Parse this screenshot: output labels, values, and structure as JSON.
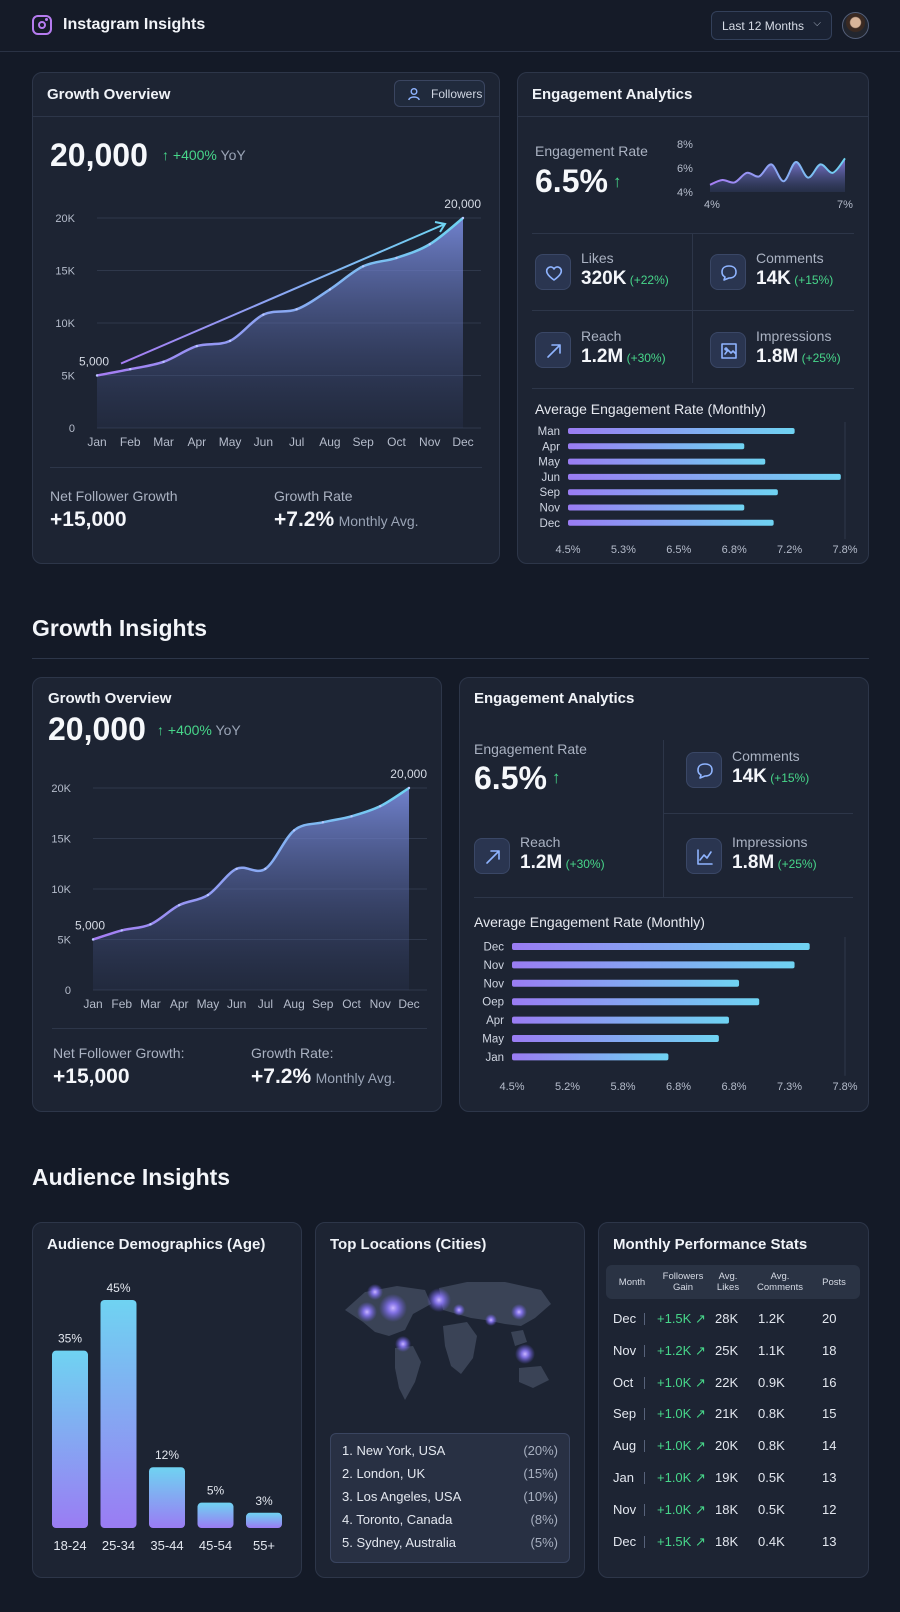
{
  "app": {
    "title": "Instagram Insights",
    "range": "Last 12 Months"
  },
  "growth1": {
    "title": "Growth Overview",
    "button": "Followers",
    "total": "20,000",
    "yoy_value": "+400%",
    "yoy_label": "YoY",
    "start_label": "5,000",
    "end_label": "20,000",
    "net_label": "Net Follower Growth",
    "net_value": "+15,000",
    "rate_label": "Growth Rate",
    "rate_value": "+7.2%",
    "rate_suffix": "Monthly Avg."
  },
  "engage1": {
    "title": "Engagement Analytics",
    "rate_label": "Engagement Rate",
    "rate_value": "6.5%",
    "spark_yticks": [
      "8%",
      "6%",
      "4%"
    ],
    "spark_xticks": [
      "4%",
      "7%"
    ],
    "stats": [
      {
        "label": "Likes",
        "value": "320K",
        "change": "(+22%)",
        "icon": "heart-icon"
      },
      {
        "label": "Comments",
        "value": "14K",
        "change": "(+15%)",
        "icon": "comment-icon"
      },
      {
        "label": "Reach",
        "value": "1.2M",
        "change": "(+30%)",
        "icon": "arrow-up-right-icon"
      },
      {
        "label": "Impressions",
        "value": "1.8M",
        "change": "(+25%)",
        "icon": "image-icon"
      }
    ],
    "bar_title": "Average Engagement Rate (Monthly)"
  },
  "section_growth": "Growth Insights",
  "growth2": {
    "title": "Growth Overview",
    "total": "20,000",
    "yoy_value": "+400%",
    "yoy_label": "YoY",
    "start_label": "5,000",
    "end_label": "20,000",
    "net_label": "Net Follower Growth:",
    "net_value": "+15,000",
    "rate_label": "Growth Rate:",
    "rate_value": "+7.2%",
    "rate_suffix": "Monthly Avg."
  },
  "engage2": {
    "title": "Engagement Analytics",
    "rate_label": "Engagement Rate",
    "rate_value": "6.5%",
    "stats": [
      {
        "label": "Comments",
        "value": "14K",
        "change": "(+15%)",
        "icon": "comment-icon"
      },
      {
        "label": "Reach",
        "value": "1.2M",
        "change": "(+30%)",
        "icon": "arrow-up-right-icon"
      },
      {
        "label": "Impressions",
        "value": "1.8M",
        "change": "(+25%)",
        "icon": "line-chart-icon"
      }
    ],
    "bar_title": "Average Engagement Rate (Monthly)"
  },
  "section_audience": "Audience Insights",
  "demographics": {
    "title": "Audience Demographics (Age)"
  },
  "locations": {
    "title": "Top Locations (Cities)",
    "items": [
      {
        "name": "1. New York, USA",
        "pct": "(20%)"
      },
      {
        "name": "2. London, UK",
        "pct": "(15%)"
      },
      {
        "name": "3. Los Angeles, USA",
        "pct": "(10%)"
      },
      {
        "name": "4. Toronto, Canada",
        "pct": "(8%)"
      },
      {
        "name": "5. Sydney, Australia",
        "pct": "(5%)"
      }
    ]
  },
  "performance": {
    "title": "Monthly Performance Stats",
    "headers": [
      "Month",
      "Followers Gain",
      "Avg. Likes",
      "Avg. Comments",
      "Posts"
    ],
    "rows": [
      [
        "Dec",
        "+1.5K ↗",
        "28K",
        "1.2K",
        "20"
      ],
      [
        "Nov",
        "+1.2K ↗",
        "25K",
        "1.1K",
        "18"
      ],
      [
        "Oct",
        "+1.0K ↗",
        "22K",
        "0.9K",
        "16"
      ],
      [
        "Sep",
        "+1.0K ↗",
        "21K",
        "0.8K",
        "15"
      ],
      [
        "Aug",
        "+1.0K ↗",
        "20K",
        "0.8K",
        "14"
      ],
      [
        "Jan",
        "+1.0K ↗",
        "19K",
        "0.5K",
        "13"
      ],
      [
        "Nov",
        "+1.0K ↗",
        "18K",
        "0.5K",
        "12"
      ],
      [
        "Dec",
        "+1.5K ↗",
        "18K",
        "0.4K",
        "13"
      ]
    ]
  },
  "colors": {
    "bg": "#141a27",
    "card": "#1d2433",
    "accent_cyan": "#6fd3f2",
    "accent_purple": "#9a7cf3",
    "positive": "#47d68a"
  },
  "chart_data": [
    {
      "type": "area",
      "id": "growth1",
      "categories": [
        "Jan",
        "Feb",
        "Mar",
        "Apr",
        "May",
        "Jun",
        "Jul",
        "Aug",
        "Sep",
        "Oct",
        "Nov",
        "Dec"
      ],
      "values": [
        5000,
        5600,
        6300,
        7800,
        8300,
        10800,
        11300,
        13200,
        15400,
        16200,
        17500,
        20000
      ],
      "yticks": [
        "0",
        "5K",
        "10K",
        "15K",
        "20K"
      ],
      "ylim": [
        0,
        20000
      ]
    },
    {
      "type": "area",
      "id": "spark",
      "values": [
        4.6,
        5.0,
        4.8,
        5.6,
        5.3,
        6.3,
        4.9,
        6.5,
        5.2,
        6.3,
        5.6,
        6.8
      ],
      "ylim": [
        4,
        8
      ]
    },
    {
      "type": "bar",
      "id": "engage1",
      "orientation": "horizontal",
      "categories": [
        "Man",
        "Apr",
        "May",
        "Jun",
        "Sep",
        "Nov",
        "Dec"
      ],
      "values": [
        7.2,
        6.6,
        6.85,
        7.75,
        7.0,
        6.6,
        6.95
      ],
      "xticks": [
        "4.5%",
        "5.3%",
        "6.5%",
        "6.8%",
        "7.2%",
        "7.8%"
      ],
      "xlim": [
        4.5,
        7.8
      ]
    },
    {
      "type": "area",
      "id": "growth2",
      "categories": [
        "Jan",
        "Feb",
        "Mar",
        "Apr",
        "May",
        "Jun",
        "Jul",
        "Aug",
        "Sep",
        "Oct",
        "Nov",
        "Dec"
      ],
      "values": [
        5000,
        5900,
        6500,
        8400,
        9400,
        12000,
        12000,
        15800,
        16600,
        17200,
        18200,
        20000
      ],
      "yticks": [
        "0",
        "5K",
        "10K",
        "15K",
        "20K"
      ],
      "ylim": [
        0,
        20000
      ]
    },
    {
      "type": "bar",
      "id": "engage2",
      "orientation": "horizontal",
      "categories": [
        "Dec",
        "Nov",
        "Nov",
        "Oep",
        "Apr",
        "May",
        "Jan"
      ],
      "values": [
        7.45,
        7.3,
        6.75,
        6.95,
        6.65,
        6.55,
        6.05
      ],
      "xticks": [
        "4.5%",
        "5.2%",
        "5.8%",
        "6.8%",
        "6.8%",
        "7.3%",
        "7.8%"
      ],
      "xlim": [
        4.5,
        7.8
      ]
    },
    {
      "type": "bar",
      "id": "demographics",
      "categories": [
        "18-24",
        "25-34",
        "35-44",
        "45-54",
        "55+"
      ],
      "values": [
        35,
        45,
        12,
        5,
        3
      ],
      "labels": [
        "35%",
        "45%",
        "12%",
        "5%",
        "3%"
      ]
    }
  ]
}
